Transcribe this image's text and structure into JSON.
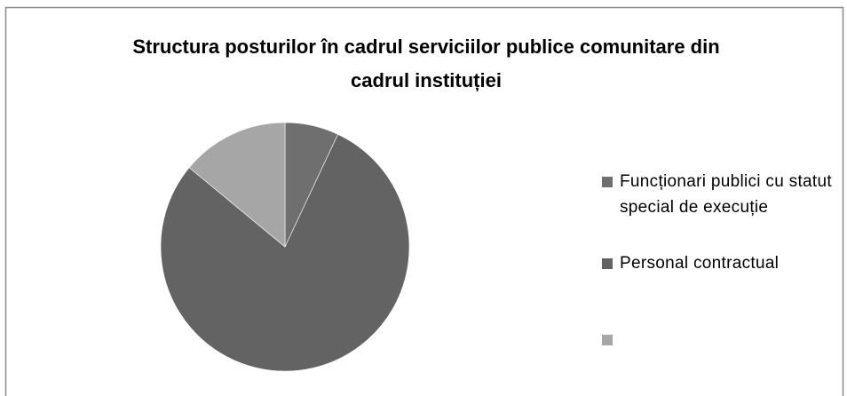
{
  "chart_data": {
    "type": "pie",
    "title": [
      "Structura posturilor în cadrul serviciilor publice comunitare din",
      "cadrul instituției"
    ],
    "categories": [
      "Funcționari publici cu statut special de execuție",
      "Personal contractual",
      null
    ],
    "values": [
      7,
      79,
      14
    ],
    "colors": [
      "#6f6f6f",
      "#636363",
      "#a6a6a6"
    ],
    "legend": "right"
  }
}
